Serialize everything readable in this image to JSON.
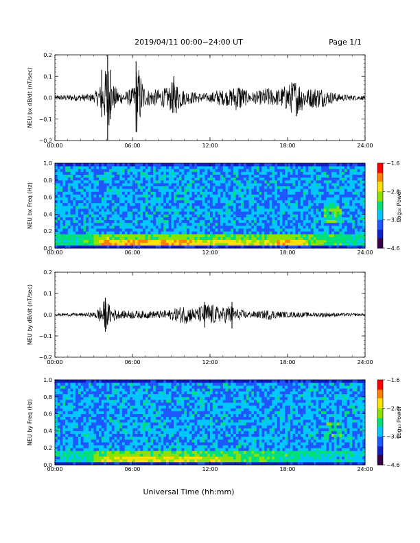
{
  "header": {
    "date_range": "2019/04/11  00:00−24:00 UT",
    "page_label": "Page 1/1"
  },
  "footer": {
    "x_axis_label": "Universal Time (hh:mm)"
  },
  "colors": {
    "trace": "#000000",
    "colormap": [
      "#3a004a",
      "#1020c8",
      "#1e56ff",
      "#00c8ff",
      "#00e07a",
      "#8fe000",
      "#ffe000",
      "#ff8000",
      "#ff0000"
    ]
  },
  "chart_data": [
    {
      "type": "line",
      "ylabel": "NEU bx dB/dt (nT/sec)",
      "xlim": [
        0,
        24
      ],
      "ylim": [
        -0.2,
        0.2
      ],
      "x_ticks": [
        "00:00",
        "06:00",
        "12:00",
        "18:00",
        "24:00"
      ],
      "y_ticks": [
        "0.2",
        "0.1",
        "0.0",
        "−0.1",
        "−0.2"
      ],
      "envelope": {
        "x": [
          0,
          1,
          2,
          3,
          3.4,
          3.8,
          4.05,
          4.3,
          5,
          5.5,
          6.1,
          6.35,
          7,
          8,
          8.8,
          9.2,
          9.6,
          10,
          11,
          12,
          12.5,
          13,
          13.6,
          14.2,
          15,
          15.5,
          16,
          16.4,
          17,
          17.6,
          18.2,
          18.6,
          19,
          19.5,
          20,
          20.6,
          21,
          22,
          23,
          24
        ],
        "y": [
          0.012,
          0.014,
          0.016,
          0.02,
          0.05,
          0.09,
          0.2,
          0.08,
          0.03,
          0.03,
          0.05,
          0.17,
          0.04,
          0.04,
          0.05,
          0.09,
          0.06,
          0.035,
          0.025,
          0.02,
          0.04,
          0.035,
          0.04,
          0.07,
          0.025,
          0.03,
          0.035,
          0.05,
          0.035,
          0.05,
          0.07,
          0.09,
          0.07,
          0.04,
          0.05,
          0.05,
          0.035,
          0.018,
          0.012,
          0.01
        ]
      },
      "spikes": [
        {
          "x": 3.62,
          "ymin": -0.09,
          "ymax": 0.13
        },
        {
          "x": 4.08,
          "ymin": -0.2,
          "ymax": 0.2
        },
        {
          "x": 4.3,
          "ymin": -0.1,
          "ymax": 0.13
        },
        {
          "x": 6.28,
          "ymin": -0.16,
          "ymax": 0.17
        },
        {
          "x": 9.2,
          "ymin": -0.07,
          "ymax": 0.1
        }
      ]
    },
    {
      "type": "heatmap",
      "ylabel": "NEU bx Freq (Hz)",
      "xlim": [
        0,
        24
      ],
      "ylim": [
        0,
        1.0
      ],
      "x_ticks": [
        "00:00",
        "06:00",
        "12:00",
        "18:00",
        "24:00"
      ],
      "y_ticks": [
        "1.0",
        "0.8",
        "0.6",
        "0.4",
        "0.2",
        "0.0"
      ],
      "colorbar": {
        "label": "Log₁₀ Power",
        "range": [
          -4.6,
          -1.6
        ],
        "ticks": [
          "−1.6",
          "−2.6",
          "−3.6",
          "−4.6"
        ]
      },
      "low_freq_band": {
        "x": [
          0,
          2,
          3.5,
          4,
          5,
          6,
          8,
          10,
          12,
          14,
          16,
          18,
          20,
          22,
          24
        ],
        "level": [
          0.35,
          0.4,
          0.6,
          0.75,
          0.62,
          0.7,
          0.65,
          0.7,
          0.6,
          0.58,
          0.55,
          0.72,
          0.5,
          0.42,
          0.35
        ]
      },
      "features": [
        {
          "x": [
            20.8,
            22.2
          ],
          "y": [
            0.3,
            0.5
          ]
        }
      ]
    },
    {
      "type": "line",
      "ylabel": "NEU by dB/dt (nT/sec)",
      "xlim": [
        0,
        24
      ],
      "ylim": [
        -0.2,
        0.2
      ],
      "x_ticks": [
        "00:00",
        "06:00",
        "12:00",
        "18:00",
        "24:00"
      ],
      "y_ticks": [
        "0.2",
        "0.1",
        "0.0",
        "−0.1",
        "−0.2"
      ],
      "envelope": {
        "x": [
          0,
          1,
          2,
          3,
          3.5,
          3.9,
          4.3,
          5,
          6,
          7,
          8,
          9,
          9.5,
          10,
          10.5,
          11,
          11.5,
          12,
          12.5,
          13,
          13.5,
          14,
          15,
          16,
          16.5,
          17,
          17.5,
          18,
          18.5,
          19,
          20,
          21,
          22,
          23,
          24
        ],
        "y": [
          0.006,
          0.007,
          0.008,
          0.012,
          0.04,
          0.075,
          0.04,
          0.018,
          0.02,
          0.018,
          0.018,
          0.025,
          0.035,
          0.045,
          0.035,
          0.03,
          0.05,
          0.055,
          0.04,
          0.035,
          0.05,
          0.03,
          0.015,
          0.018,
          0.025,
          0.02,
          0.015,
          0.012,
          0.014,
          0.012,
          0.01,
          0.012,
          0.008,
          0.007,
          0.006
        ]
      },
      "spikes": [
        {
          "x": 3.9,
          "ymin": -0.08,
          "ymax": 0.08
        },
        {
          "x": 11.6,
          "ymin": -0.06,
          "ymax": 0.06
        },
        {
          "x": 13.7,
          "ymin": -0.065,
          "ymax": 0.06
        }
      ]
    },
    {
      "type": "heatmap",
      "ylabel": "NEU by Freq (Hz)",
      "xlim": [
        0,
        24
      ],
      "ylim": [
        0,
        1.0
      ],
      "x_ticks": [
        "00:00",
        "06:00",
        "12:00",
        "18:00",
        "24:00"
      ],
      "y_ticks": [
        "1.0",
        "0.8",
        "0.6",
        "0.4",
        "0.2",
        "0.0"
      ],
      "colorbar": {
        "label": "Log₁₀ Power",
        "range": [
          -4.6,
          -1.6
        ],
        "ticks": [
          "−1.6",
          "−2.6",
          "−3.6",
          "−4.6"
        ]
      },
      "low_freq_band": {
        "x": [
          0,
          2,
          3,
          4,
          5,
          6,
          8,
          10,
          12,
          14,
          16,
          18,
          20,
          22,
          24
        ],
        "level": [
          0.3,
          0.35,
          0.45,
          0.6,
          0.6,
          0.65,
          0.62,
          0.6,
          0.55,
          0.5,
          0.45,
          0.4,
          0.35,
          0.32,
          0.3
        ]
      },
      "features": [
        {
          "x": [
            20.8,
            22.2
          ],
          "y": [
            0.3,
            0.5
          ]
        }
      ]
    }
  ]
}
